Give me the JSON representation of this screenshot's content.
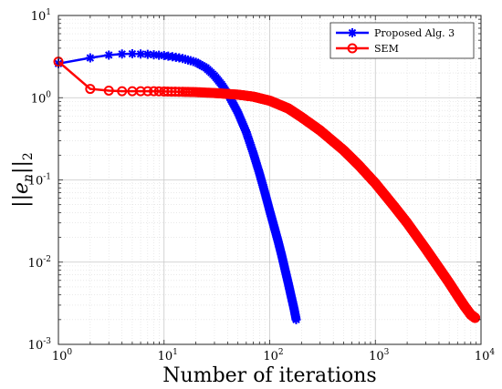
{
  "chart_data": {
    "type": "line",
    "title": "",
    "xlabel": "Number of iterations",
    "ylabel": "||e_n||_2",
    "xscale": "log",
    "yscale": "log",
    "xlim": [
      1,
      10000
    ],
    "ylim": [
      0.001,
      10
    ],
    "grid": "major and minor, dotted",
    "legend_placement": "top-right",
    "x_tick_labels": [
      {
        "value": 1,
        "base": "10",
        "exp": "0"
      },
      {
        "value": 10,
        "base": "10",
        "exp": "1"
      },
      {
        "value": 100,
        "base": "10",
        "exp": "2"
      },
      {
        "value": 1000,
        "base": "10",
        "exp": "3"
      },
      {
        "value": 10000,
        "base": "10",
        "exp": "4"
      }
    ],
    "y_tick_labels": [
      {
        "value": 0.001,
        "base": "10",
        "exp": "-3"
      },
      {
        "value": 0.01,
        "base": "10",
        "exp": "-2"
      },
      {
        "value": 0.1,
        "base": "10",
        "exp": "-1"
      },
      {
        "value": 1,
        "base": "10",
        "exp": "0"
      },
      {
        "value": 10,
        "base": "10",
        "exp": "1"
      }
    ],
    "series": [
      {
        "name": "Proposed Alg. 3",
        "color": "#0000ff",
        "marker": "asterisk",
        "x": [
          1,
          2,
          3,
          4,
          5,
          6,
          7,
          8,
          10,
          12,
          15,
          20,
          25,
          30,
          35,
          40,
          45,
          50,
          60,
          70,
          80,
          90,
          100,
          110,
          120,
          130,
          140,
          150,
          160,
          170,
          178
        ],
        "y": [
          2.6,
          3.05,
          3.3,
          3.4,
          3.42,
          3.4,
          3.37,
          3.33,
          3.25,
          3.15,
          3.0,
          2.7,
          2.3,
          1.85,
          1.45,
          1.12,
          0.85,
          0.66,
          0.38,
          0.21,
          0.12,
          0.07,
          0.042,
          0.027,
          0.018,
          0.012,
          0.008,
          0.0055,
          0.0038,
          0.0027,
          0.002
        ]
      },
      {
        "name": "SEM",
        "color": "#ff0000",
        "marker": "circle",
        "x": [
          1,
          2,
          3,
          4,
          5,
          6,
          7,
          8,
          10,
          15,
          20,
          30,
          50,
          70,
          100,
          150,
          200,
          300,
          500,
          700,
          1000,
          1500,
          2000,
          3000,
          4000,
          5000,
          6000,
          7000,
          8000,
          8800
        ],
        "y": [
          2.75,
          1.28,
          1.22,
          1.2,
          1.2,
          1.2,
          1.2,
          1.2,
          1.19,
          1.18,
          1.17,
          1.14,
          1.09,
          1.03,
          0.92,
          0.74,
          0.58,
          0.4,
          0.23,
          0.15,
          0.091,
          0.048,
          0.03,
          0.0145,
          0.0085,
          0.0056,
          0.0039,
          0.0029,
          0.0023,
          0.0021
        ]
      }
    ]
  }
}
